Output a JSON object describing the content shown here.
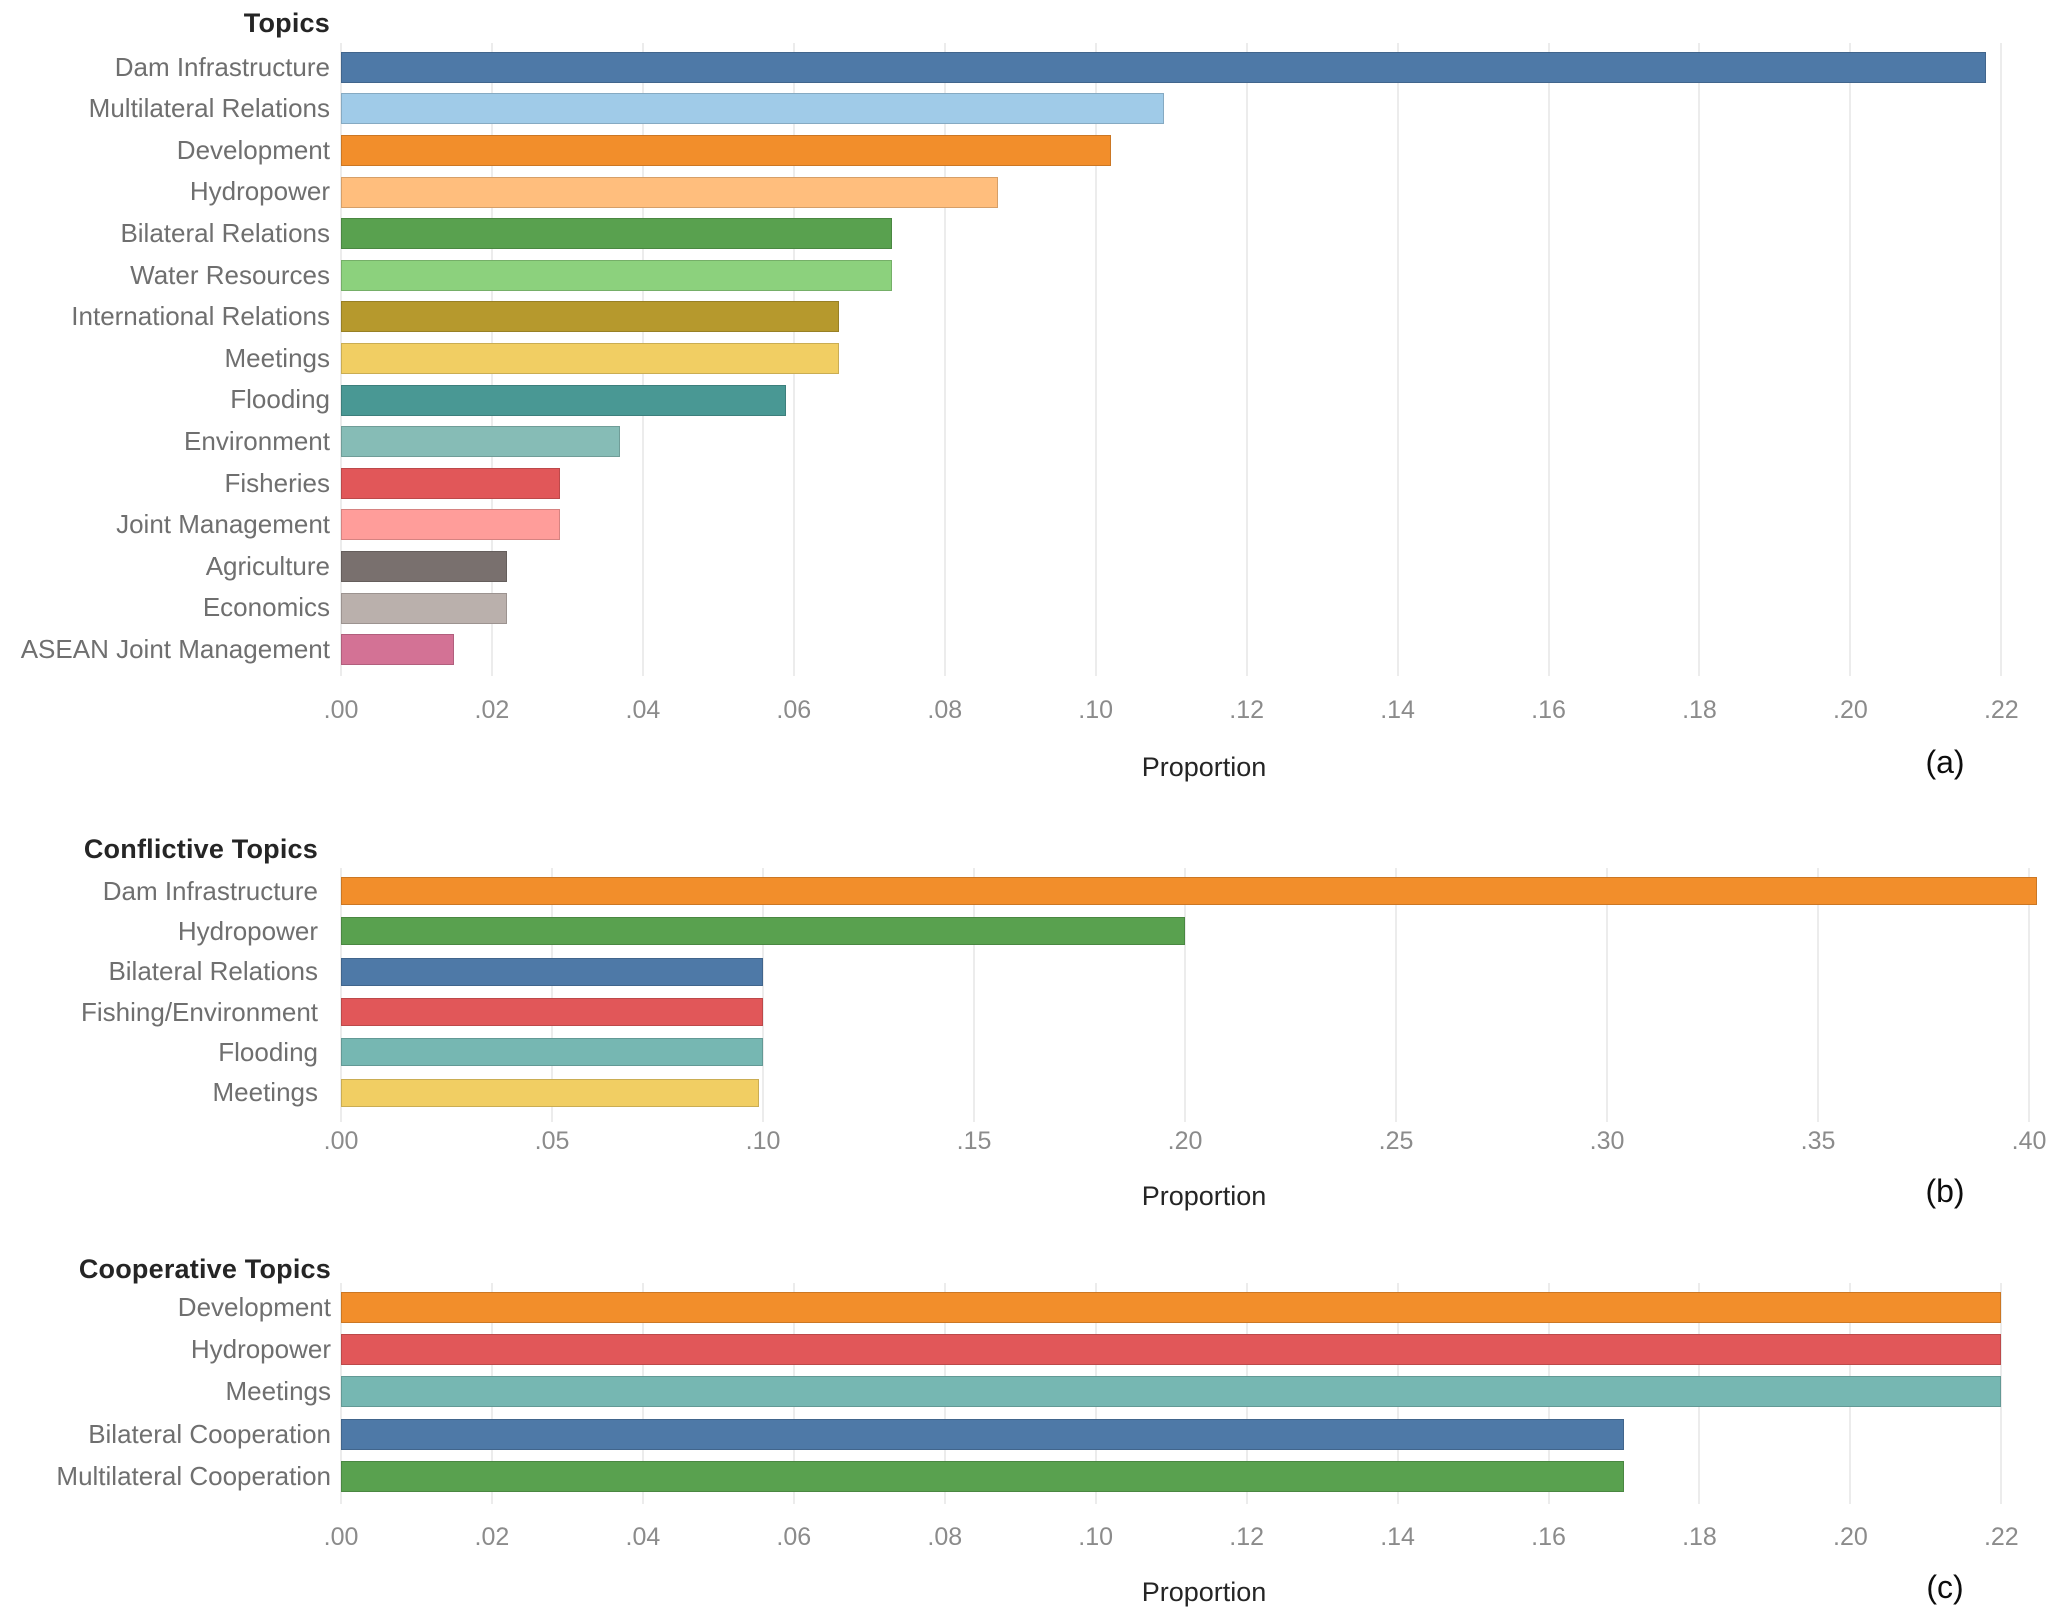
{
  "figure": {
    "background": "#ffffff",
    "axis_title": "Proportion"
  },
  "chart_data": [
    {
      "id": "a",
      "type": "bar",
      "orientation": "horizontal",
      "title": "Topics",
      "xlabel": "Proportion",
      "panel_tag": "(a)",
      "axis": {
        "min": 0,
        "max": 0.2287,
        "tick_step": 0.02,
        "tick_values": [
          0,
          0.02,
          0.04,
          0.06,
          0.08,
          0.1,
          0.12,
          0.14,
          0.16,
          0.18,
          0.2,
          0.22
        ],
        "tick_labels": [
          ".00",
          ".02",
          ".04",
          ".06",
          ".08",
          ".10",
          ".12",
          ".14",
          ".16",
          ".18",
          ".20",
          ".22"
        ],
        "grid": true
      },
      "bars": [
        {
          "label": "Dam Infrastructure",
          "value": 0.218,
          "color": "#4e79a7"
        },
        {
          "label": "Multilateral Relations",
          "value": 0.109,
          "color": "#a0cbe8"
        },
        {
          "label": "Development",
          "value": 0.102,
          "color": "#f28e2b"
        },
        {
          "label": "Hydropower",
          "value": 0.087,
          "color": "#ffbe7d"
        },
        {
          "label": "Bilateral Relations",
          "value": 0.073,
          "color": "#59a14f"
        },
        {
          "label": "Water Resources",
          "value": 0.073,
          "color": "#8cd17d"
        },
        {
          "label": "International Relations",
          "value": 0.066,
          "color": "#b6992d"
        },
        {
          "label": "Meetings",
          "value": 0.066,
          "color": "#f1ce63"
        },
        {
          "label": "Flooding",
          "value": 0.059,
          "color": "#499894"
        },
        {
          "label": "Environment",
          "value": 0.037,
          "color": "#86bcb6"
        },
        {
          "label": "Fisheries",
          "value": 0.029,
          "color": "#e15759"
        },
        {
          "label": "Joint Management",
          "value": 0.029,
          "color": "#ff9d9a"
        },
        {
          "label": "Agriculture",
          "value": 0.022,
          "color": "#79706e"
        },
        {
          "label": "Economics",
          "value": 0.022,
          "color": "#bab0ac"
        },
        {
          "label": "ASEAN Joint Management",
          "value": 0.015,
          "color": "#d37295"
        }
      ]
    },
    {
      "id": "b",
      "type": "bar",
      "orientation": "horizontal",
      "title": "Conflictive Topics",
      "xlabel": "Proportion",
      "panel_tag": "(b)",
      "axis": {
        "min": 0,
        "max": 0.409,
        "tick_step": 0.05,
        "tick_values": [
          0,
          0.05,
          0.1,
          0.15,
          0.2,
          0.25,
          0.3,
          0.35,
          0.4
        ],
        "tick_labels": [
          ".00",
          ".05",
          ".10",
          ".15",
          ".20",
          ".25",
          ".30",
          ".35",
          ".40"
        ],
        "grid": true
      },
      "bars": [
        {
          "label": "Dam Infrastructure",
          "value": 0.402,
          "color": "#f28e2b"
        },
        {
          "label": "Hydropower",
          "value": 0.2,
          "color": "#59a14f"
        },
        {
          "label": "Bilateral Relations",
          "value": 0.1,
          "color": "#4e79a7"
        },
        {
          "label": "Fishing/Environment",
          "value": 0.1,
          "color": "#e15759"
        },
        {
          "label": "Flooding",
          "value": 0.1,
          "color": "#76b7b2"
        },
        {
          "label": "Meetings",
          "value": 0.099,
          "color": "#f1ce63"
        }
      ]
    },
    {
      "id": "c",
      "type": "bar",
      "orientation": "horizontal",
      "title": "Cooperative Topics",
      "xlabel": "Proportion",
      "panel_tag": "(c)",
      "axis": {
        "min": 0,
        "max": 0.2287,
        "tick_step": 0.02,
        "tick_values": [
          0,
          0.02,
          0.04,
          0.06,
          0.08,
          0.1,
          0.12,
          0.14,
          0.16,
          0.18,
          0.2,
          0.22
        ],
        "tick_labels": [
          ".00",
          ".02",
          ".04",
          ".06",
          ".08",
          ".10",
          ".12",
          ".14",
          ".16",
          ".18",
          ".20",
          ".22"
        ],
        "grid": true
      },
      "bars": [
        {
          "label": "Development",
          "value": 0.22,
          "color": "#f28e2b"
        },
        {
          "label": "Hydropower",
          "value": 0.22,
          "color": "#e15759"
        },
        {
          "label": "Meetings",
          "value": 0.22,
          "color": "#76b7b2"
        },
        {
          "label": "Bilateral Cooperation",
          "value": 0.17,
          "color": "#4e79a7"
        },
        {
          "label": "Multilateral Cooperation",
          "value": 0.17,
          "color": "#59a14f"
        }
      ]
    }
  ]
}
